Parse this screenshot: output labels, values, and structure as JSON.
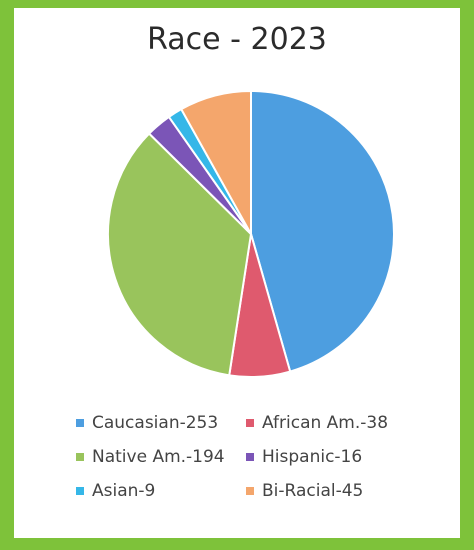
{
  "chart_data": {
    "type": "pie",
    "title": "Race - 2023",
    "categories": [
      "Caucasian",
      "African Am.",
      "Native Am.",
      "Hispanic",
      "Asian",
      "Bi-Racial"
    ],
    "values": [
      253,
      38,
      194,
      16,
      9,
      45
    ],
    "legend_labels": [
      "Caucasian-253",
      "African Am.-38",
      "Native Am.-194",
      "Hispanic-16",
      "Asian-9",
      "Bi-Racial-45"
    ],
    "colors": [
      "#4d9ee0",
      "#df5a6e",
      "#99c45c",
      "#7b55b7",
      "#35b7e8",
      "#f4a66c"
    ],
    "start_angle": "12 o'clock",
    "direction": "clockwise",
    "legend_position": "bottom"
  }
}
